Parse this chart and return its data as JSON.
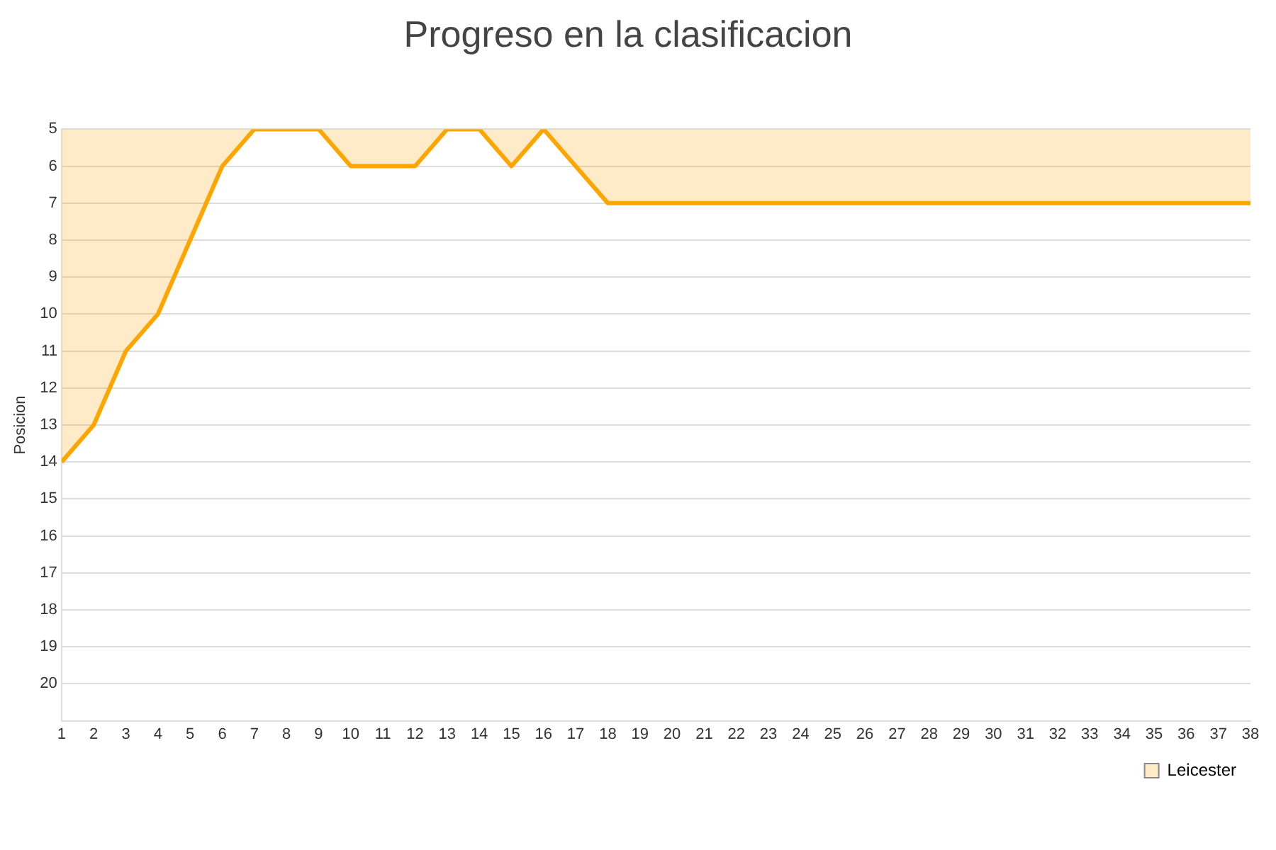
{
  "chart_data": {
    "type": "area",
    "title": "Progreso en la clasificacion",
    "ylabel": "Posicion",
    "x": [
      1,
      2,
      3,
      4,
      5,
      6,
      7,
      8,
      9,
      10,
      11,
      12,
      13,
      14,
      15,
      16,
      17,
      18,
      19,
      20,
      21,
      22,
      23,
      24,
      25,
      26,
      27,
      28,
      29,
      30,
      31,
      32,
      33,
      34,
      35,
      36,
      37,
      38
    ],
    "series": [
      {
        "name": "Leicester",
        "color": "#ffa500",
        "values": [
          14,
          13,
          11,
          10,
          8,
          6,
          5,
          5,
          5,
          6,
          6,
          6,
          5,
          5,
          6,
          5,
          6,
          7,
          7,
          7,
          7,
          7,
          7,
          7,
          7,
          7,
          7,
          7,
          7,
          7,
          7,
          7,
          7,
          7,
          7,
          7,
          7,
          7
        ]
      }
    ],
    "xlim": [
      1,
      38
    ],
    "xticks": [
      1,
      2,
      3,
      4,
      5,
      6,
      7,
      8,
      9,
      10,
      11,
      12,
      13,
      14,
      15,
      16,
      17,
      18,
      19,
      20,
      21,
      22,
      23,
      24,
      25,
      26,
      27,
      28,
      29,
      30,
      31,
      32,
      33,
      34,
      35,
      36,
      37,
      38
    ],
    "ylim": [
      21,
      5
    ],
    "yticks": [
      5,
      6,
      7,
      8,
      9,
      10,
      11,
      12,
      13,
      14,
      15,
      16,
      17,
      18,
      19,
      20
    ],
    "grid": "y",
    "legend": "bottom right",
    "marker": "none"
  }
}
